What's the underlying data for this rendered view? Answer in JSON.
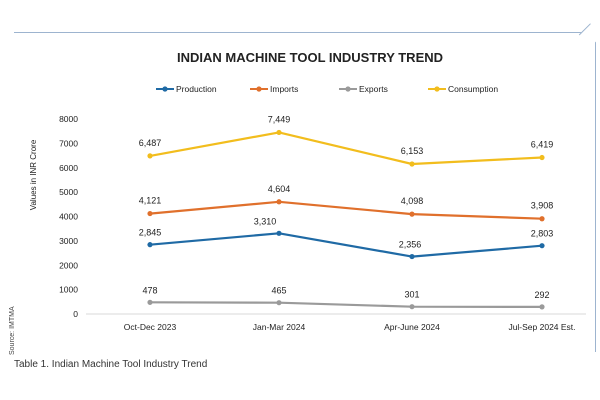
{
  "chart_data": {
    "type": "line",
    "title": "INDIAN MACHINE TOOL INDUSTRY TREND",
    "ylabel": "Values in INR Crore",
    "xlabel": "",
    "categories": [
      "Oct-Dec 2023",
      "Jan-Mar 2024",
      "Apr-June 2024",
      "Jul-Sep 2024 Est."
    ],
    "ylim": [
      0,
      8000
    ],
    "yticks": [
      0,
      1000,
      2000,
      3000,
      4000,
      5000,
      6000,
      7000,
      8000
    ],
    "grid": false,
    "legend_position": "top",
    "series": [
      {
        "name": "Production",
        "color": "#1f6aa5",
        "values": [
          2845,
          3310,
          2356,
          2803
        ],
        "labels": [
          "2,845",
          "3,310",
          "2,356",
          "2,803"
        ]
      },
      {
        "name": "Imports",
        "color": "#e0702c",
        "values": [
          4121,
          4604,
          4098,
          3908
        ],
        "labels": [
          "4,121",
          "4,604",
          "4,098",
          "3,908"
        ]
      },
      {
        "name": "Exports",
        "color": "#9a9a9a",
        "values": [
          478,
          465,
          301,
          292
        ],
        "labels": [
          "478",
          "465",
          "301",
          "292"
        ]
      },
      {
        "name": "Consumption",
        "color": "#f2bd1d",
        "values": [
          6487,
          7449,
          6153,
          6419
        ],
        "labels": [
          "6,487",
          "7,449",
          "6,153",
          "6,419"
        ]
      }
    ]
  },
  "source": "Source: IMTMA",
  "caption": "Table 1. Indian Machine Tool Industry Trend"
}
